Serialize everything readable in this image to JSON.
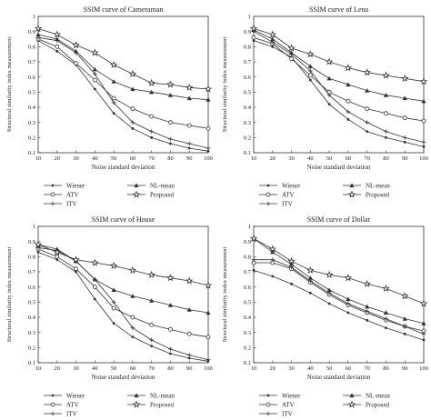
{
  "chart_data": [
    {
      "type": "line",
      "title": "SSIM curve of Cameraman",
      "xlabel": "Noise standard deviation",
      "ylabel": "Structural similarity index measurement",
      "x": [
        10,
        20,
        30,
        40,
        50,
        60,
        70,
        80,
        90,
        100
      ],
      "xlim": [
        10,
        100
      ],
      "ylim": [
        0.1,
        1.0
      ],
      "xticks": [
        "10",
        "20",
        "30",
        "40",
        "50",
        "60",
        "70",
        "80",
        "90",
        "100"
      ],
      "yticks": [
        "0.1",
        "0.2",
        "0.3",
        "0.4",
        "0.5",
        "0.6",
        "0.7",
        "0.8",
        "0.9",
        "1"
      ],
      "legend_position": "bottom",
      "series": [
        {
          "name": "Wiener",
          "marker": "dot",
          "values": [
            0.84,
            0.77,
            0.68,
            0.52,
            0.36,
            0.26,
            0.2,
            0.16,
            0.13,
            0.11
          ]
        },
        {
          "name": "ATV",
          "marker": "circle",
          "values": [
            0.85,
            0.8,
            0.69,
            0.58,
            0.46,
            0.39,
            0.34,
            0.3,
            0.28,
            0.26
          ]
        },
        {
          "name": "ITV",
          "marker": "plus",
          "values": [
            0.86,
            0.84,
            0.76,
            0.62,
            0.43,
            0.3,
            0.24,
            0.19,
            0.16,
            0.13
          ]
        },
        {
          "name": "NL-mean",
          "marker": "triangle",
          "values": [
            0.88,
            0.85,
            0.77,
            0.65,
            0.57,
            0.52,
            0.5,
            0.48,
            0.46,
            0.45
          ]
        },
        {
          "name": "Proposed",
          "marker": "star",
          "values": [
            0.92,
            0.88,
            0.81,
            0.76,
            0.68,
            0.62,
            0.56,
            0.55,
            0.53,
            0.52
          ]
        }
      ]
    },
    {
      "type": "line",
      "title": "SSIM curve of Lena",
      "xlabel": "Noise standard deviation",
      "ylabel": "Structural similarity index measurement",
      "x": [
        10,
        20,
        30,
        40,
        50,
        60,
        70,
        80,
        90,
        100
      ],
      "xlim": [
        10,
        100
      ],
      "ylim": [
        0.1,
        1.0
      ],
      "xticks": [
        "10",
        "20",
        "30",
        "40",
        "50",
        "60",
        "70",
        "80",
        "90",
        "100"
      ],
      "yticks": [
        "0.1",
        "0.2",
        "0.3",
        "0.4",
        "0.5",
        "0.6",
        "0.7",
        "0.8",
        "0.9",
        "1"
      ],
      "legend_position": "bottom",
      "series": [
        {
          "name": "Wiener",
          "marker": "dot",
          "values": [
            0.84,
            0.8,
            0.73,
            0.58,
            0.42,
            0.32,
            0.24,
            0.2,
            0.17,
            0.14
          ]
        },
        {
          "name": "ATV",
          "marker": "circle",
          "values": [
            0.86,
            0.82,
            0.72,
            0.61,
            0.5,
            0.44,
            0.39,
            0.36,
            0.33,
            0.31
          ]
        },
        {
          "name": "ITV",
          "marker": "plus",
          "values": [
            0.9,
            0.83,
            0.75,
            0.64,
            0.48,
            0.37,
            0.3,
            0.24,
            0.2,
            0.17
          ]
        },
        {
          "name": "NL-mean",
          "marker": "triangle",
          "values": [
            0.91,
            0.85,
            0.76,
            0.67,
            0.59,
            0.55,
            0.51,
            0.48,
            0.46,
            0.44
          ]
        },
        {
          "name": "Proposed",
          "marker": "star",
          "values": [
            0.92,
            0.88,
            0.79,
            0.75,
            0.7,
            0.66,
            0.63,
            0.61,
            0.59,
            0.57
          ]
        }
      ]
    },
    {
      "type": "line",
      "title": "SSIM curve of House",
      "xlabel": "Noise standard deviation",
      "ylabel": "Structural similarity index measurement",
      "x": [
        10,
        20,
        30,
        40,
        50,
        60,
        70,
        80,
        90,
        100
      ],
      "xlim": [
        10,
        100
      ],
      "ylim": [
        0.1,
        1.0
      ],
      "xticks": [
        "10",
        "20",
        "30",
        "40",
        "50",
        "60",
        "70",
        "80",
        "90",
        "100"
      ],
      "yticks": [
        "0.1",
        "0.2",
        "0.3",
        "0.4",
        "0.5",
        "0.6",
        "0.7",
        "0.8",
        "0.9",
        "1"
      ],
      "legend_position": "bottom",
      "series": [
        {
          "name": "Wiener",
          "marker": "dot",
          "values": [
            0.83,
            0.78,
            0.7,
            0.52,
            0.36,
            0.27,
            0.21,
            0.16,
            0.13,
            0.11
          ]
        },
        {
          "name": "ATV",
          "marker": "circle",
          "values": [
            0.85,
            0.8,
            0.72,
            0.6,
            0.46,
            0.4,
            0.35,
            0.32,
            0.29,
            0.27
          ]
        },
        {
          "name": "ITV",
          "marker": "plus",
          "values": [
            0.86,
            0.84,
            0.77,
            0.65,
            0.5,
            0.33,
            0.25,
            0.19,
            0.15,
            0.12
          ]
        },
        {
          "name": "NL-mean",
          "marker": "triangle",
          "values": [
            0.88,
            0.85,
            0.77,
            0.65,
            0.58,
            0.54,
            0.51,
            0.48,
            0.45,
            0.43
          ]
        },
        {
          "name": "Proposed",
          "marker": "star",
          "values": [
            0.88,
            0.83,
            0.78,
            0.76,
            0.74,
            0.71,
            0.68,
            0.66,
            0.64,
            0.61
          ]
        }
      ]
    },
    {
      "type": "line",
      "title": "SSIM curve of Dollar",
      "xlabel": "Noise standard deviation",
      "ylabel": "Structural similarity index measurement",
      "x": [
        10,
        20,
        30,
        40,
        50,
        60,
        70,
        80,
        90,
        100
      ],
      "xlim": [
        10,
        100
      ],
      "ylim": [
        0.1,
        1.0
      ],
      "xticks": [
        "10",
        "20",
        "30",
        "40",
        "50",
        "60",
        "70",
        "80",
        "90",
        "100"
      ],
      "yticks": [
        "0.1",
        "0.2",
        "0.3",
        "0.4",
        "0.5",
        "0.6",
        "0.7",
        "0.8",
        "0.9",
        "1"
      ],
      "legend_position": "bottom",
      "series": [
        {
          "name": "Wiener",
          "marker": "dot",
          "values": [
            0.71,
            0.67,
            0.62,
            0.56,
            0.49,
            0.43,
            0.38,
            0.33,
            0.29,
            0.25
          ]
        },
        {
          "name": "ATV",
          "marker": "circle",
          "values": [
            0.76,
            0.76,
            0.72,
            0.63,
            0.55,
            0.48,
            0.43,
            0.38,
            0.34,
            0.31
          ]
        },
        {
          "name": "ITV",
          "marker": "plus",
          "values": [
            0.78,
            0.78,
            0.73,
            0.64,
            0.56,
            0.49,
            0.44,
            0.39,
            0.34,
            0.29
          ]
        },
        {
          "name": "NL-mean",
          "marker": "triangle",
          "values": [
            0.92,
            0.83,
            0.75,
            0.66,
            0.58,
            0.52,
            0.47,
            0.43,
            0.39,
            0.36
          ]
        },
        {
          "name": "Proposed",
          "marker": "star",
          "values": [
            0.92,
            0.85,
            0.77,
            0.71,
            0.68,
            0.66,
            0.62,
            0.59,
            0.54,
            0.49
          ]
        }
      ]
    }
  ]
}
